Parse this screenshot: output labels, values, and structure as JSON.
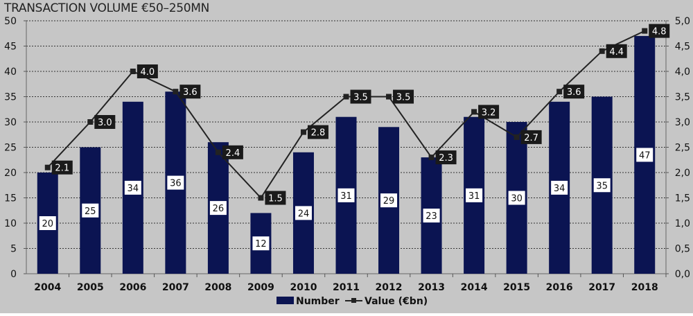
{
  "chart_data": {
    "type": "bar+line",
    "title": "TRANSACTION VOLUME €50–250MN",
    "categories": [
      "2004",
      "2005",
      "2006",
      "2007",
      "2008",
      "2009",
      "2010",
      "2011",
      "2012",
      "2013",
      "2014",
      "2015",
      "2016",
      "2017",
      "2018"
    ],
    "series": [
      {
        "name": "Number",
        "type": "bar",
        "axis": "left",
        "color": "#0b1452",
        "values": [
          20,
          25,
          34,
          36,
          26,
          12,
          24,
          31,
          29,
          23,
          31,
          30,
          34,
          35,
          47
        ]
      },
      {
        "name": "Value (€bn)",
        "type": "line",
        "axis": "right",
        "color": "#222222",
        "values": [
          2.1,
          3.0,
          4.0,
          3.6,
          2.4,
          1.5,
          2.8,
          3.5,
          3.5,
          2.3,
          3.2,
          2.7,
          3.6,
          4.4,
          4.8
        ]
      }
    ],
    "left_axis": {
      "ylim": [
        0,
        50
      ],
      "ticks": [
        "0",
        "5",
        "10",
        "15",
        "20",
        "25",
        "30",
        "35",
        "40",
        "45",
        "50"
      ]
    },
    "right_axis": {
      "ylim": [
        0,
        5
      ],
      "ticks": [
        "0,0",
        "0,5",
        "1,0",
        "1,5",
        "2,0",
        "2,5",
        "3,0",
        "3,5",
        "4,0",
        "4,5",
        "5,0"
      ]
    },
    "grid": "horizontal dashed",
    "legend": "bottom-center"
  }
}
